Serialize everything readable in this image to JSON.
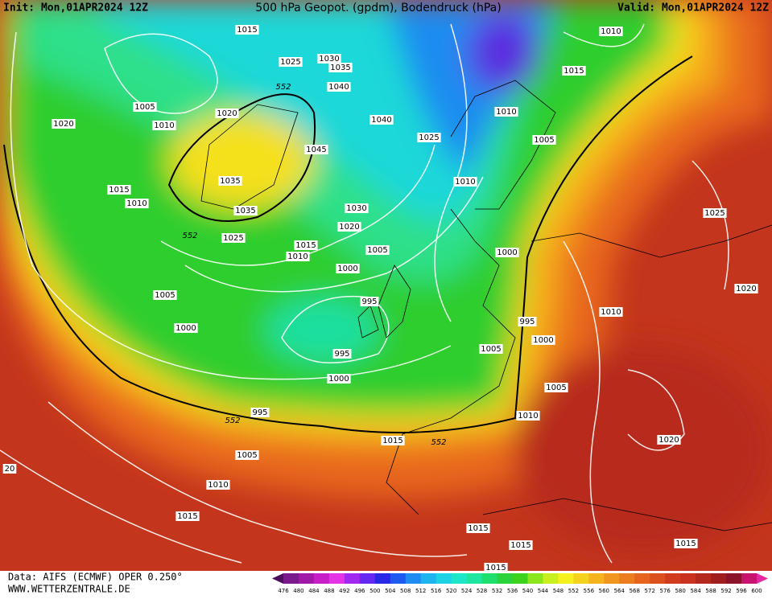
{
  "header": {
    "init": "Init: Mon,01APR2024 12Z",
    "title": "500 hPa Geopot. (gpdm), Bodendruck (hPa)",
    "valid": "Valid: Mon,01APR2024 12Z"
  },
  "map": {
    "labels": [
      "1015",
      "1025",
      "1030",
      "1035",
      "1010",
      "1015",
      "1005",
      "1010",
      "1020",
      "552",
      "1040",
      "1040",
      "1025",
      "1010",
      "1020",
      "1005",
      "1045",
      "1035",
      "1035",
      "1015",
      "1010",
      "1010",
      "1030",
      "1020",
      "1025",
      "552",
      "1015",
      "1010",
      "1005",
      "1000",
      "1000",
      "1025",
      "1020",
      "1005",
      "995",
      "1010",
      "995",
      "1000",
      "1000",
      "1005",
      "995",
      "1000",
      "1005",
      "995",
      "552",
      "1010",
      "1015",
      "552",
      "1020",
      "1005",
      "20",
      "1010",
      "1015",
      "1015",
      "1015",
      "1015",
      "1015"
    ]
  },
  "footer": {
    "source": "Data: AIFS (ECMWF) OPER 0.250°",
    "site": "WWW.WETTERZENTRALE.DE"
  },
  "legend": {
    "labels": [
      476,
      480,
      484,
      488,
      492,
      496,
      500,
      504,
      508,
      512,
      516,
      520,
      524,
      528,
      532,
      536,
      540,
      544,
      548,
      552,
      556,
      560,
      564,
      568,
      572,
      576,
      580,
      584,
      588,
      592,
      596,
      600
    ]
  }
}
